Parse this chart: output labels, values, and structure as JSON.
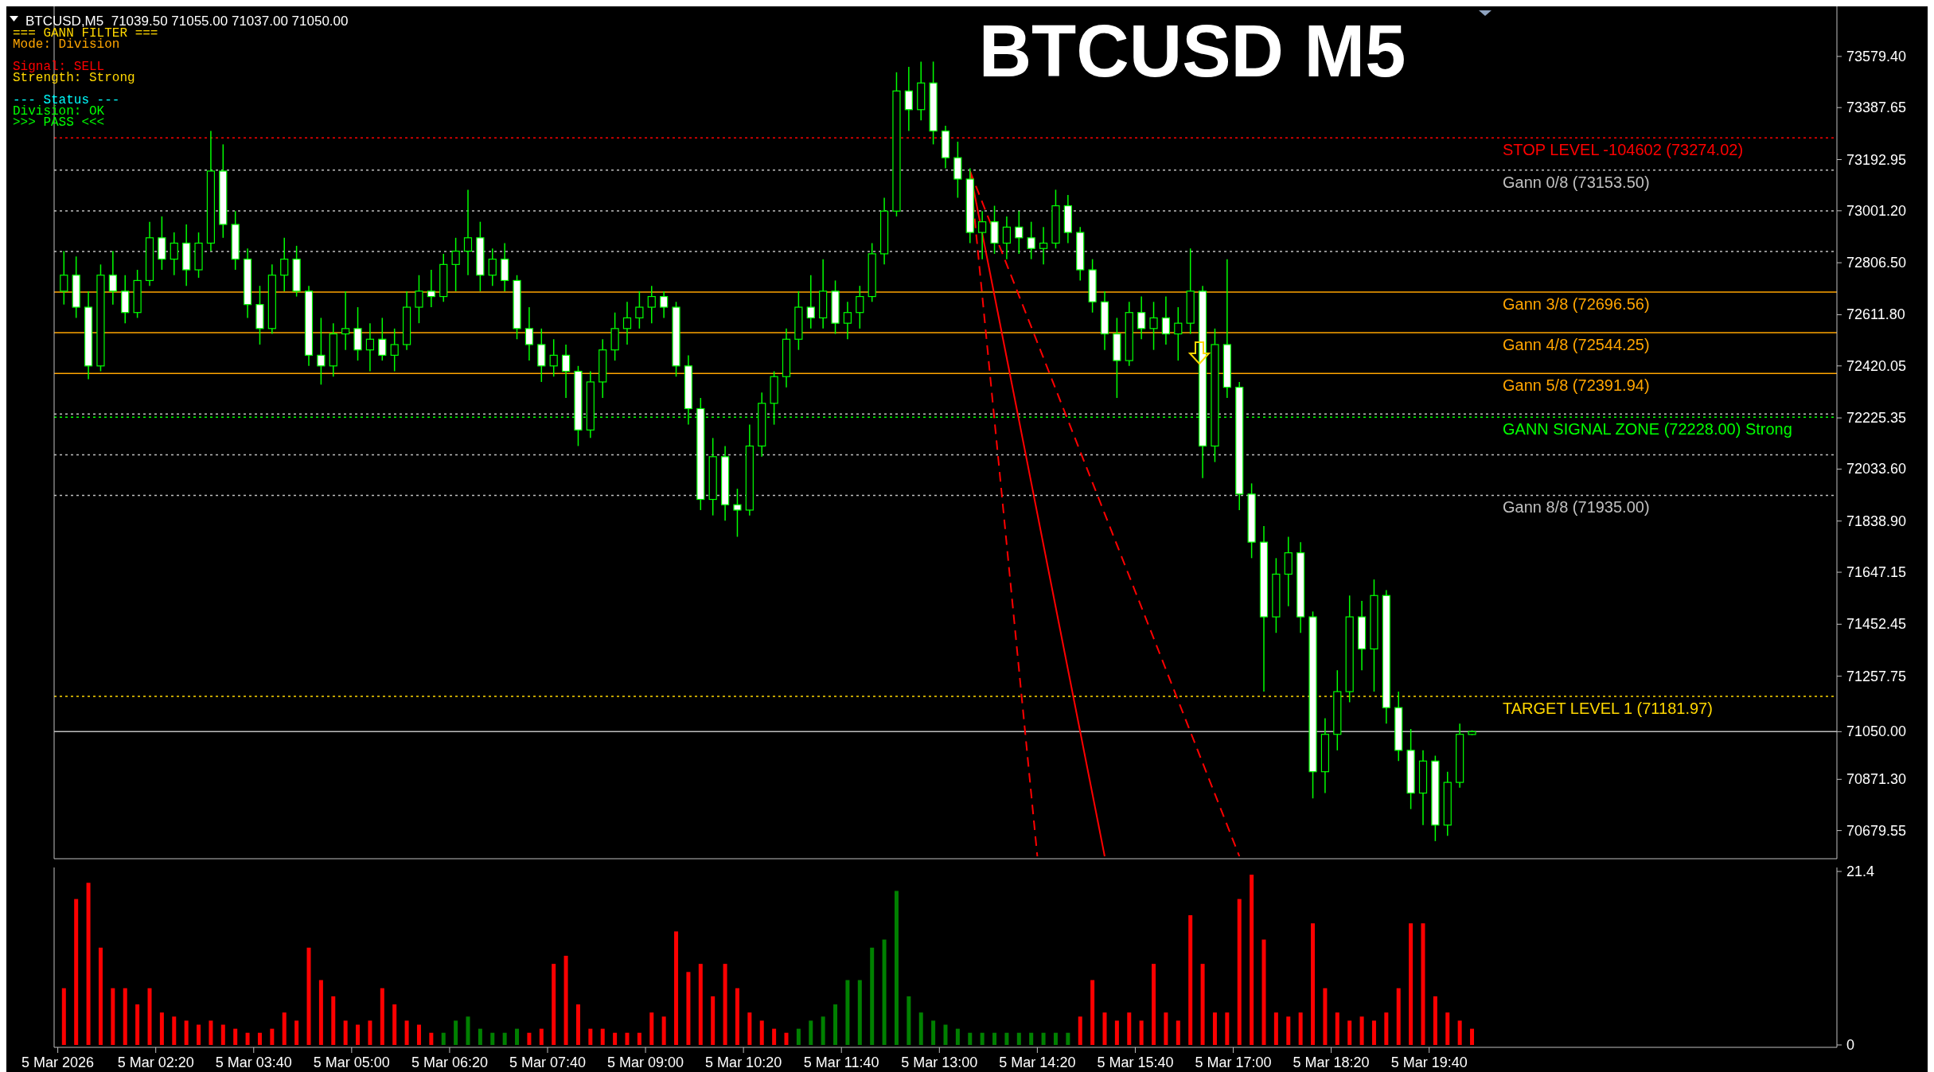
{
  "chart_data": [
    {
      "type": "candlestick",
      "title": "BTCUSD M5",
      "subtitle": "BTCUSD,M5  71039.50 71055.00 71037.00 71050.00",
      "annotations": [
        "=== GANN FILTER ===",
        "Mode: Division",
        "Signal: SELL",
        "Strength: Strong",
        "--- Status ---",
        "Division: OK",
        ">>> PASS <<<"
      ],
      "x": [
        "2026-03-05T01:05",
        "2026-03-05T01:15",
        "2026-03-05T01:25",
        "2026-03-05T01:35",
        "2026-03-05T01:45",
        "2026-03-05T01:55",
        "2026-03-05T02:05",
        "2026-03-05T02:15",
        "2026-03-05T02:25",
        "2026-03-05T02:35",
        "2026-03-05T02:45",
        "2026-03-05T02:55",
        "2026-03-05T03:05",
        "2026-03-05T03:15",
        "2026-03-05T03:25",
        "2026-03-05T03:35",
        "2026-03-05T03:45",
        "2026-03-05T03:55",
        "2026-03-05T04:05",
        "2026-03-05T04:15",
        "2026-03-05T04:25",
        "2026-03-05T04:35",
        "2026-03-05T04:45",
        "2026-03-05T04:55",
        "2026-03-05T05:05",
        "2026-03-05T05:15",
        "2026-03-05T05:25",
        "2026-03-05T05:35",
        "2026-03-05T05:45",
        "2026-03-05T05:55",
        "2026-03-05T06:05",
        "2026-03-05T06:15",
        "2026-03-05T06:25",
        "2026-03-05T06:35",
        "2026-03-05T06:45",
        "2026-03-05T06:55",
        "2026-03-05T07:05",
        "2026-03-05T07:15",
        "2026-03-05T07:25",
        "2026-03-05T07:35",
        "2026-03-05T07:45",
        "2026-03-05T07:55",
        "2026-03-05T08:05",
        "2026-03-05T08:15",
        "2026-03-05T08:25",
        "2026-03-05T08:35",
        "2026-03-05T08:45",
        "2026-03-05T08:55",
        "2026-03-05T09:05",
        "2026-03-05T09:15",
        "2026-03-05T09:25",
        "2026-03-05T09:35",
        "2026-03-05T09:45",
        "2026-03-05T09:55",
        "2026-03-05T10:05",
        "2026-03-05T10:15",
        "2026-03-05T10:25",
        "2026-03-05T10:35",
        "2026-03-05T10:45",
        "2026-03-05T10:55",
        "2026-03-05T11:05",
        "2026-03-05T11:15",
        "2026-03-05T11:25",
        "2026-03-05T11:35",
        "2026-03-05T11:45",
        "2026-03-05T11:55",
        "2026-03-05T12:05",
        "2026-03-05T12:15",
        "2026-03-05T12:25",
        "2026-03-05T12:35",
        "2026-03-05T12:45",
        "2026-03-05T12:55",
        "2026-03-05T13:05",
        "2026-03-05T13:15",
        "2026-03-05T13:25",
        "2026-03-05T13:35",
        "2026-03-05T13:45",
        "2026-03-05T13:55",
        "2026-03-05T14:05",
        "2026-03-05T14:15",
        "2026-03-05T14:25",
        "2026-03-05T14:35",
        "2026-03-05T14:45",
        "2026-03-05T14:55",
        "2026-03-05T15:05",
        "2026-03-05T15:15",
        "2026-03-05T15:25",
        "2026-03-05T15:35",
        "2026-03-05T15:45",
        "2026-03-05T15:55",
        "2026-03-05T16:05",
        "2026-03-05T16:15",
        "2026-03-05T16:25",
        "2026-03-05T16:35",
        "2026-03-05T16:45",
        "2026-03-05T16:55",
        "2026-03-05T17:05",
        "2026-03-05T17:15",
        "2026-03-05T17:25",
        "2026-03-05T17:35",
        "2026-03-05T17:45",
        "2026-03-05T17:55",
        "2026-03-05T18:05",
        "2026-03-05T18:15",
        "2026-03-05T18:25",
        "2026-03-05T18:35",
        "2026-03-05T18:45",
        "2026-03-05T18:55",
        "2026-03-05T19:05",
        "2026-03-05T19:15",
        "2026-03-05T19:25",
        "2026-03-05T19:35",
        "2026-03-05T19:45",
        "2026-03-05T19:55",
        "2026-03-05T20:05",
        "2026-03-05T20:15"
      ],
      "ohlc": [
        [
          72700,
          72850,
          72650,
          72760
        ],
        [
          72760,
          72830,
          72600,
          72640
        ],
        [
          72640,
          72700,
          72370,
          72420
        ],
        [
          72420,
          72800,
          72400,
          72760
        ],
        [
          72760,
          72850,
          72650,
          72700
        ],
        [
          72700,
          72760,
          72580,
          72620
        ],
        [
          72620,
          72780,
          72600,
          72740
        ],
        [
          72740,
          72960,
          72720,
          72900
        ],
        [
          72900,
          72980,
          72780,
          72820
        ],
        [
          72820,
          72920,
          72760,
          72880
        ],
        [
          72880,
          72950,
          72720,
          72780
        ],
        [
          72780,
          72920,
          72750,
          72880
        ],
        [
          72880,
          73300,
          72850,
          73150
        ],
        [
          73150,
          73250,
          72900,
          72950
        ],
        [
          72950,
          73000,
          72780,
          72820
        ],
        [
          72820,
          72860,
          72600,
          72650
        ],
        [
          72650,
          72720,
          72500,
          72560
        ],
        [
          72560,
          72800,
          72540,
          72760
        ],
        [
          72760,
          72900,
          72700,
          72820
        ],
        [
          72820,
          72870,
          72680,
          72700
        ],
        [
          72700,
          72720,
          72420,
          72460
        ],
        [
          72460,
          72600,
          72350,
          72420
        ],
        [
          72420,
          72580,
          72380,
          72540
        ],
        [
          72540,
          72700,
          72480,
          72560
        ],
        [
          72560,
          72640,
          72440,
          72480
        ],
        [
          72480,
          72580,
          72400,
          72520
        ],
        [
          72520,
          72600,
          72440,
          72460
        ],
        [
          72460,
          72560,
          72400,
          72500
        ],
        [
          72500,
          72700,
          72480,
          72640
        ],
        [
          72640,
          72760,
          72580,
          72700
        ],
        [
          72700,
          72780,
          72640,
          72680
        ],
        [
          72680,
          72840,
          72660,
          72800
        ],
        [
          72800,
          72900,
          72700,
          72850
        ],
        [
          72850,
          73080,
          72760,
          72900
        ],
        [
          72900,
          72960,
          72700,
          72760
        ],
        [
          72760,
          72860,
          72720,
          72820
        ],
        [
          72820,
          72880,
          72700,
          72740
        ],
        [
          72740,
          72760,
          72520,
          72560
        ],
        [
          72560,
          72640,
          72440,
          72500
        ],
        [
          72500,
          72560,
          72360,
          72420
        ],
        [
          72420,
          72520,
          72380,
          72460
        ],
        [
          72460,
          72500,
          72300,
          72400
        ],
        [
          72400,
          72420,
          72120,
          72180
        ],
        [
          72180,
          72400,
          72150,
          72360
        ],
        [
          72360,
          72520,
          72300,
          72480
        ],
        [
          72480,
          72620,
          72440,
          72560
        ],
        [
          72560,
          72660,
          72500,
          72600
        ],
        [
          72600,
          72700,
          72560,
          72640
        ],
        [
          72640,
          72720,
          72580,
          72680
        ],
        [
          72680,
          72700,
          72600,
          72640
        ],
        [
          72640,
          72660,
          72380,
          72420
        ],
        [
          72420,
          72460,
          72200,
          72260
        ],
        [
          72260,
          72300,
          71880,
          71920
        ],
        [
          71920,
          72150,
          71860,
          72080
        ],
        [
          72080,
          72120,
          71840,
          71900
        ],
        [
          71900,
          71960,
          71780,
          71880
        ],
        [
          71880,
          72200,
          71860,
          72120
        ],
        [
          72120,
          72320,
          72080,
          72280
        ],
        [
          72280,
          72400,
          72200,
          72380
        ],
        [
          72380,
          72560,
          72340,
          72520
        ],
        [
          72520,
          72700,
          72480,
          72640
        ],
        [
          72640,
          72760,
          72560,
          72600
        ],
        [
          72600,
          72820,
          72560,
          72700
        ],
        [
          72700,
          72740,
          72540,
          72580
        ],
        [
          72580,
          72660,
          72520,
          72620
        ],
        [
          72620,
          72720,
          72560,
          72680
        ],
        [
          72680,
          72880,
          72660,
          72840
        ],
        [
          72840,
          73050,
          72800,
          73000
        ],
        [
          73000,
          73520,
          72980,
          73450
        ],
        [
          73450,
          73540,
          73300,
          73380
        ],
        [
          73380,
          73560,
          73340,
          73480
        ],
        [
          73480,
          73560,
          73250,
          73300
        ],
        [
          73300,
          73320,
          73160,
          73200
        ],
        [
          73200,
          73260,
          73050,
          73120
        ],
        [
          73120,
          73160,
          72880,
          72920
        ],
        [
          72920,
          73000,
          72820,
          72960
        ],
        [
          72960,
          73020,
          72840,
          72880
        ],
        [
          72880,
          72980,
          72820,
          72940
        ],
        [
          72940,
          73000,
          72840,
          72900
        ],
        [
          72900,
          72960,
          72820,
          72860
        ],
        [
          72860,
          72940,
          72800,
          72880
        ],
        [
          72880,
          73080,
          72860,
          73020
        ],
        [
          73020,
          73060,
          72880,
          72920
        ],
        [
          72920,
          72940,
          72740,
          72780
        ],
        [
          72780,
          72820,
          72620,
          72660
        ],
        [
          72660,
          72700,
          72480,
          72540
        ],
        [
          72540,
          72600,
          72300,
          72440
        ],
        [
          72440,
          72660,
          72420,
          72620
        ],
        [
          72620,
          72680,
          72520,
          72560
        ],
        [
          72560,
          72660,
          72480,
          72600
        ],
        [
          72600,
          72680,
          72500,
          72540
        ],
        [
          72540,
          72640,
          72440,
          72580
        ],
        [
          72580,
          72860,
          72540,
          72700
        ],
        [
          72700,
          72720,
          72000,
          72120
        ],
        [
          72120,
          72560,
          72060,
          72500
        ],
        [
          72500,
          72820,
          72300,
          72340
        ],
        [
          72340,
          72360,
          71880,
          71940
        ],
        [
          71940,
          71980,
          71700,
          71760
        ],
        [
          71760,
          71820,
          71200,
          71480
        ],
        [
          71480,
          71700,
          71420,
          71640
        ],
        [
          71640,
          71780,
          71520,
          71720
        ],
        [
          71720,
          71760,
          71420,
          71480
        ],
        [
          71480,
          71500,
          70800,
          70900
        ],
        [
          70900,
          71100,
          70820,
          71040
        ],
        [
          71040,
          71280,
          70980,
          71200
        ],
        [
          71200,
          71560,
          71160,
          71480
        ],
        [
          71480,
          71540,
          71280,
          71360
        ],
        [
          71360,
          71620,
          71200,
          71560
        ],
        [
          71560,
          71580,
          71080,
          71140
        ],
        [
          71140,
          71200,
          70940,
          70980
        ],
        [
          70980,
          71060,
          70760,
          70820
        ],
        [
          70820,
          70980,
          70700,
          70940
        ],
        [
          70940,
          70960,
          70640,
          70700
        ],
        [
          70700,
          70900,
          70660,
          70860
        ],
        [
          70860,
          71080,
          70840,
          71040
        ],
        [
          71039.5,
          71055,
          71037,
          71050
        ]
      ],
      "series": [
        {
          "type": "line",
          "color": "#ff0000",
          "line_style": "dashed",
          "x": [
            "2026-03-05T13:25",
            "2026-03-05T14:20"
          ],
          "values": [
            73150,
            70583
          ]
        },
        {
          "type": "line",
          "color": "#ff0000",
          "line_style": "solid",
          "x": [
            "2026-03-05T13:25",
            "2026-03-05T15:15"
          ],
          "values": [
            73150,
            70583
          ]
        },
        {
          "type": "line",
          "color": "#ff0000",
          "line_style": "dashed",
          "x": [
            "2026-03-05T13:25",
            "2026-03-05T17:05"
          ],
          "values": [
            73150,
            70583
          ]
        }
      ],
      "xlim": [
        "2026-03-05T00:57",
        "2026-03-06T01:13"
      ],
      "ylim": [
        70583,
        73752
      ],
      "yticks": [
        70679.55,
        {
          "value": 70871.3,
          "label": "70871.30"
        },
        {
          "value": 71050,
          "label": "71050.00"
        },
        71257.75,
        71452.45,
        71647.15,
        {
          "value": 71838.9,
          "label": "71838.90"
        },
        {
          "value": 72033.6,
          "label": "72033.60"
        },
        72225.35,
        72420.05,
        {
          "value": 72611.8,
          "label": "72611.80"
        },
        {
          "value": 72806.5,
          "label": "72806.50"
        },
        {
          "value": 73001.2,
          "label": "73001.20"
        },
        73192.95,
        73387.65,
        {
          "value": 73579.4,
          "label": "73579.40"
        }
      ],
      "ref_lines": [
        {
          "axis": "y",
          "value": 73274.02,
          "label": "STOP LEVEL -104602 (73274.02)",
          "color": "#ff0000",
          "line_style": "dotted"
        },
        {
          "axis": "y",
          "value": 73153.5,
          "label": "Gann 0/8 (73153.50)",
          "color": "#c0c0c0",
          "line_style": "dotted"
        },
        {
          "axis": "y",
          "value": 73001,
          "color": "#c0c0c0",
          "line_style": "dotted"
        },
        {
          "axis": "y",
          "value": 72849,
          "color": "#c0c0c0",
          "line_style": "dotted"
        },
        {
          "axis": "y",
          "value": 72696.56,
          "label": "Gann 3/8 (72696.56)",
          "color": "#ffa500",
          "line_style": "solid"
        },
        {
          "axis": "y",
          "value": 72544.25,
          "label": "Gann 4/8 (72544.25)",
          "color": "#ffa500",
          "line_style": "solid"
        },
        {
          "axis": "y",
          "value": 72391.94,
          "label": "Gann 5/8 (72391.94)",
          "color": "#ffa500",
          "line_style": "solid"
        },
        {
          "axis": "y",
          "value": 72240,
          "color": "#c0c0c0",
          "line_style": "dotted"
        },
        {
          "axis": "y",
          "value": 72228,
          "label": "GANN SIGNAL ZONE (72228.00) Strong",
          "color": "#00ff00",
          "line_style": "dotted"
        },
        {
          "axis": "y",
          "value": 72087,
          "color": "#c0c0c0",
          "line_style": "dotted"
        },
        {
          "axis": "y",
          "value": 71935,
          "label": "Gann 8/8 (71935.00)",
          "color": "#c0c0c0",
          "line_style": "dotted"
        },
        {
          "axis": "y",
          "value": 71181.97,
          "label": "TARGET LEVEL 1 (71181.97)",
          "color": "#ffd700",
          "line_style": "dotted"
        },
        {
          "axis": "y",
          "value": 71050,
          "color": "#c0c0c0",
          "line_style": "solid"
        }
      ],
      "tick_labels": "y"
    },
    {
      "type": "bar",
      "x": [
        "2026-03-05T01:05",
        "2026-03-05T01:15",
        "2026-03-05T01:25",
        "2026-03-05T01:35",
        "2026-03-05T01:45",
        "2026-03-05T01:55",
        "2026-03-05T02:05",
        "2026-03-05T02:15",
        "2026-03-05T02:25",
        "2026-03-05T02:35",
        "2026-03-05T02:45",
        "2026-03-05T02:55",
        "2026-03-05T03:05",
        "2026-03-05T03:15",
        "2026-03-05T03:25",
        "2026-03-05T03:35",
        "2026-03-05T03:45",
        "2026-03-05T03:55",
        "2026-03-05T04:05",
        "2026-03-05T04:15",
        "2026-03-05T04:25",
        "2026-03-05T04:35",
        "2026-03-05T04:45",
        "2026-03-05T04:55",
        "2026-03-05T05:05",
        "2026-03-05T05:15",
        "2026-03-05T05:25",
        "2026-03-05T05:35",
        "2026-03-05T05:45",
        "2026-03-05T05:55",
        "2026-03-05T06:05",
        "2026-03-05T06:15",
        "2026-03-05T06:25",
        "2026-03-05T06:35",
        "2026-03-05T06:45",
        "2026-03-05T06:55",
        "2026-03-05T07:05",
        "2026-03-05T07:15",
        "2026-03-05T07:25",
        "2026-03-05T07:35",
        "2026-03-05T07:45",
        "2026-03-05T07:55",
        "2026-03-05T08:05",
        "2026-03-05T08:15",
        "2026-03-05T08:25",
        "2026-03-05T08:35",
        "2026-03-05T08:45",
        "2026-03-05T08:55",
        "2026-03-05T09:05",
        "2026-03-05T09:15",
        "2026-03-05T09:25",
        "2026-03-05T09:35",
        "2026-03-05T09:45",
        "2026-03-05T09:55",
        "2026-03-05T10:05",
        "2026-03-05T10:15",
        "2026-03-05T10:25",
        "2026-03-05T10:35",
        "2026-03-05T10:45",
        "2026-03-05T10:55",
        "2026-03-05T11:05",
        "2026-03-05T11:15",
        "2026-03-05T11:25",
        "2026-03-05T11:35",
        "2026-03-05T11:45",
        "2026-03-05T11:55",
        "2026-03-05T12:05",
        "2026-03-05T12:15",
        "2026-03-05T12:25",
        "2026-03-05T12:35",
        "2026-03-05T12:45",
        "2026-03-05T12:55",
        "2026-03-05T13:05",
        "2026-03-05T13:15",
        "2026-03-05T13:25",
        "2026-03-05T13:35",
        "2026-03-05T13:45",
        "2026-03-05T13:55",
        "2026-03-05T14:05",
        "2026-03-05T14:15",
        "2026-03-05T14:25",
        "2026-03-05T14:35",
        "2026-03-05T14:45",
        "2026-03-05T14:55",
        "2026-03-05T15:05",
        "2026-03-05T15:15",
        "2026-03-05T15:25",
        "2026-03-05T15:35",
        "2026-03-05T15:45",
        "2026-03-05T15:55",
        "2026-03-05T16:05",
        "2026-03-05T16:15",
        "2026-03-05T16:25",
        "2026-03-05T16:35",
        "2026-03-05T16:45",
        "2026-03-05T16:55",
        "2026-03-05T17:05",
        "2026-03-05T17:15",
        "2026-03-05T17:25",
        "2026-03-05T17:35",
        "2026-03-05T17:45",
        "2026-03-05T17:55",
        "2026-03-05T18:05",
        "2026-03-05T18:15",
        "2026-03-05T18:25",
        "2026-03-05T18:35",
        "2026-03-05T18:45",
        "2026-03-05T18:55",
        "2026-03-05T19:05",
        "2026-03-05T19:15",
        "2026-03-05T19:25",
        "2026-03-05T19:35",
        "2026-03-05T19:45",
        "2026-03-05T19:55",
        "2026-03-05T20:05",
        "2026-03-05T20:15"
      ],
      "values": [
        7,
        18,
        20,
        12,
        7,
        7,
        5,
        7,
        4,
        3.5,
        3,
        2.5,
        3,
        2.5,
        2,
        1.5,
        1.5,
        2,
        4,
        3,
        12,
        8,
        6,
        3,
        2.5,
        3,
        7,
        5,
        3,
        2.5,
        1.5,
        1.5,
        3,
        3.5,
        2,
        1.5,
        1.5,
        2,
        1.5,
        2,
        10,
        11,
        5,
        2,
        2,
        1.5,
        1.5,
        1.5,
        4,
        3.5,
        14,
        9,
        10,
        6,
        10,
        7,
        4,
        3,
        2,
        1.5,
        2,
        3,
        3.5,
        5,
        8,
        8,
        12,
        13,
        19,
        6,
        4,
        3,
        2.5,
        2,
        1.5,
        1.5,
        1.5,
        1.5,
        1.5,
        1.5,
        1.5,
        1.5,
        1.5,
        3.5,
        8,
        4,
        3,
        4,
        3,
        10,
        4,
        3,
        16,
        10,
        4,
        4,
        18,
        21,
        13,
        4,
        3.5,
        4,
        15,
        7,
        4,
        3,
        3.5,
        3,
        4,
        7,
        15,
        15,
        6,
        4,
        3,
        2
      ],
      "colors": [
        "#ff0000",
        "#ff0000",
        "#ff0000",
        "#ff0000",
        "#ff0000",
        "#ff0000",
        "#ff0000",
        "#ff0000",
        "#ff0000",
        "#ff0000",
        "#ff0000",
        "#ff0000",
        "#ff0000",
        "#ff0000",
        "#ff0000",
        "#ff0000",
        "#ff0000",
        "#ff0000",
        "#ff0000",
        "#ff0000",
        "#ff0000",
        "#ff0000",
        "#ff0000",
        "#ff0000",
        "#ff0000",
        "#ff0000",
        "#ff0000",
        "#ff0000",
        "#ff0000",
        "#ff0000",
        "#ff0000",
        "#008000",
        "#008000",
        "#008000",
        "#008000",
        "#008000",
        "#008000",
        "#008000",
        "#ff0000",
        "#ff0000",
        "#ff0000",
        "#ff0000",
        "#ff0000",
        "#ff0000",
        "#ff0000",
        "#ff0000",
        "#ff0000",
        "#ff0000",
        "#ff0000",
        "#ff0000",
        "#ff0000",
        "#ff0000",
        "#ff0000",
        "#ff0000",
        "#ff0000",
        "#ff0000",
        "#ff0000",
        "#ff0000",
        "#ff0000",
        "#ff0000",
        "#008000",
        "#008000",
        "#008000",
        "#008000",
        "#008000",
        "#008000",
        "#008000",
        "#008000",
        "#008000",
        "#008000",
        "#008000",
        "#008000",
        "#008000",
        "#008000",
        "#008000",
        "#008000",
        "#008000",
        "#008000",
        "#008000",
        "#008000",
        "#008000",
        "#008000",
        "#008000",
        "#ff0000",
        "#ff0000",
        "#ff0000",
        "#ff0000",
        "#ff0000",
        "#ff0000",
        "#ff0000",
        "#ff0000",
        "#ff0000",
        "#ff0000",
        "#ff0000",
        "#ff0000",
        "#ff0000",
        "#ff0000",
        "#ff0000",
        "#ff0000",
        "#ff0000",
        "#ff0000",
        "#ff0000",
        "#ff0000",
        "#ff0000",
        "#ff0000",
        "#ff0000",
        "#ff0000",
        "#ff0000",
        "#ff0000",
        "#ff0000",
        "#ff0000",
        "#ff0000",
        "#ff0000",
        "#ff0000",
        "#ff0000",
        "#ff0000"
      ],
      "xlim": [
        "2026-03-05T00:57",
        "2026-03-06T01:13"
      ],
      "xticks": [
        {
          "value": "2026-03-05T01:00",
          "label": "5 Mar 2026"
        },
        {
          "value": "2026-03-05T02:20",
          "label": "5 Mar 02:20"
        },
        {
          "value": "2026-03-05T03:40",
          "label": "5 Mar 03:40"
        },
        {
          "value": "2026-03-05T05:00",
          "label": "5 Mar 05:00"
        },
        {
          "value": "2026-03-05T06:20",
          "label": "5 Mar 06:20"
        },
        {
          "value": "2026-03-05T07:40",
          "label": "5 Mar 07:40"
        },
        {
          "value": "2026-03-05T09:00",
          "label": "5 Mar 09:00"
        },
        {
          "value": "2026-03-05T10:20",
          "label": "5 Mar 10:20"
        },
        {
          "value": "2026-03-05T11:40",
          "label": "5 Mar 11:40"
        },
        {
          "value": "2026-03-05T13:00",
          "label": "5 Mar 13:00"
        },
        {
          "value": "2026-03-05T14:20",
          "label": "5 Mar 14:20"
        },
        {
          "value": "2026-03-05T15:40",
          "label": "5 Mar 15:40"
        },
        {
          "value": "2026-03-05T17:00",
          "label": "5 Mar 17:00"
        },
        {
          "value": "2026-03-05T18:20",
          "label": "5 Mar 18:20"
        },
        {
          "value": "2026-03-05T19:40",
          "label": "5 Mar 19:40"
        }
      ],
      "ylim": [
        0,
        21.4
      ],
      "yticks": [
        0,
        21.4
      ]
    }
  ]
}
